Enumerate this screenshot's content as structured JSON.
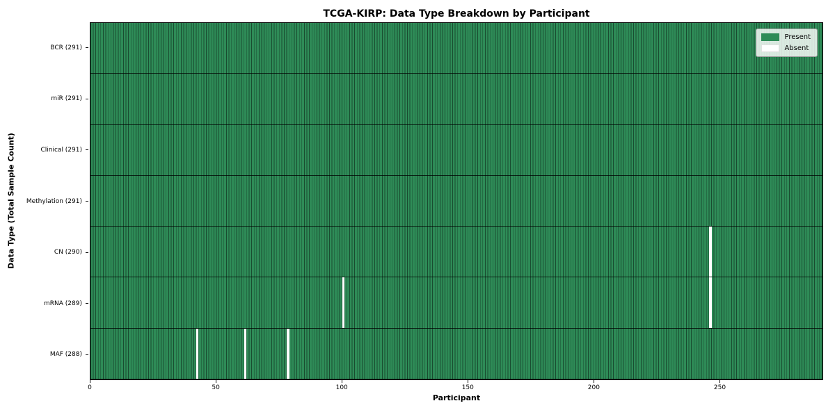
{
  "chart_data": {
    "type": "heatmap",
    "title": "TCGA-KIRP: Data Type Breakdown by Participant",
    "xlabel": "Participant",
    "ylabel": "Data Type (Total Sample Count)",
    "n_participants": 291,
    "x_ticks": [
      0,
      50,
      100,
      150,
      200,
      250
    ],
    "x_range": [
      0,
      291
    ],
    "grid": false,
    "legend_position": "upper right",
    "rows": [
      {
        "label": "BCR (291)",
        "present_count": 291,
        "absent_participants": []
      },
      {
        "label": "miR (291)",
        "present_count": 291,
        "absent_participants": []
      },
      {
        "label": "Clinical (291)",
        "present_count": 291,
        "absent_participants": []
      },
      {
        "label": "Methylation (291)",
        "present_count": 291,
        "absent_participants": []
      },
      {
        "label": "CN (290)",
        "present_count": 290,
        "absent_participants": [
          246
        ]
      },
      {
        "label": "mRNA (289)",
        "present_count": 289,
        "absent_participants": [
          100,
          246
        ]
      },
      {
        "label": "MAF (288)",
        "present_count": 288,
        "absent_participants": [
          42,
          61,
          78
        ]
      }
    ],
    "legend": [
      {
        "label": "Present",
        "color": "#2e8b57"
      },
      {
        "label": "Absent",
        "color": "#ffffff"
      }
    ],
    "colors": {
      "present": "#2e8b57",
      "absent": "#ffffff",
      "bar_edge": "rgba(0,0,0,0.45)",
      "row_divider": "rgba(0,0,0,0.75)",
      "spine": "#0e0e0e"
    }
  }
}
